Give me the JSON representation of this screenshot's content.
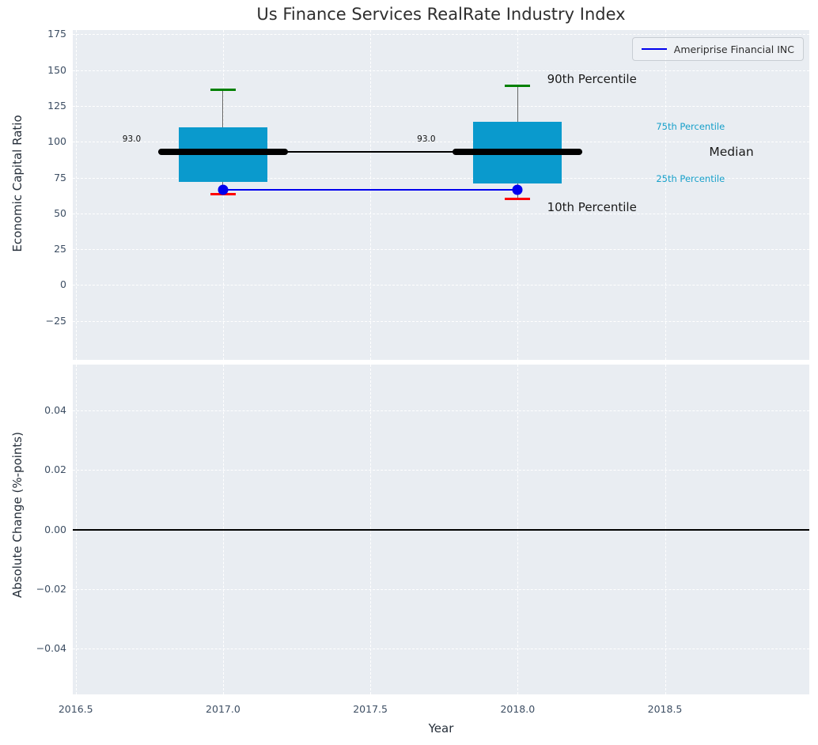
{
  "title": "Us Finance Services RealRate Industry Index",
  "legend": {
    "label": "Ameriprise Financial INC"
  },
  "colors": {
    "axes_bg": "#e9edf2",
    "grid": "#ffffff",
    "tick_label": "#3d4e63",
    "box_fill": "#0a9acd",
    "median_line": "#000000",
    "p90_cap": "#008000",
    "p10_cap": "#ff0000",
    "company_line": "#0000ee",
    "whisker": "#666666",
    "annotation_cyan": "#17a0ca",
    "annotation_black": "#1a1a1a"
  },
  "chart_data": [
    {
      "type": "box-percentile",
      "title": "Us Finance Services RealRate Industry Index",
      "ylabel": "Economic Capital Ratio",
      "ylim": [
        -52.3,
        178
      ],
      "yticks": [
        175,
        150,
        125,
        100,
        75,
        50,
        25,
        0,
        -25
      ],
      "ytick_labels": [
        "175",
        "150",
        "125",
        "100",
        "75",
        "50",
        "25",
        "0",
        "−25"
      ],
      "xlim": [
        2016.49,
        2018.99
      ],
      "xticks": [
        2016.5,
        2017.0,
        2017.5,
        2018.0,
        2018.5
      ],
      "grid": true,
      "legend_position": "upper right",
      "years": [
        2017,
        2018
      ],
      "p90": [
        136.5,
        139
      ],
      "p75": [
        110,
        114
      ],
      "median": [
        93.0,
        93.0
      ],
      "median_labels": [
        "93.0",
        "93.0"
      ],
      "p25": [
        72,
        71
      ],
      "p10": [
        63.5,
        60
      ],
      "company": {
        "name": "Ameriprise Financial INC",
        "values": [
          66.5,
          66.5
        ]
      },
      "box_width_years": 0.3,
      "median_span_years": 0.44,
      "cap_width_years": 0.085,
      "annotations": [
        {
          "text": "90th Percentile",
          "x": 2018.1,
          "y": 144,
          "color": "black",
          "size": 15
        },
        {
          "text": "75th Percentile",
          "x": 2018.47,
          "y": 110.5,
          "color": "cyan",
          "size": 11.5
        },
        {
          "text": "Median",
          "x": 2018.65,
          "y": 93,
          "color": "black",
          "size": 15.5
        },
        {
          "text": "25th Percentile",
          "x": 2018.47,
          "y": 74,
          "color": "cyan",
          "size": 11.5
        },
        {
          "text": "10th Percentile",
          "x": 2018.1,
          "y": 54.5,
          "color": "black",
          "size": 15
        }
      ]
    },
    {
      "type": "line",
      "ylabel": "Absolute Change (%-points)",
      "xlabel": "Year",
      "ylim": [
        -0.0553,
        0.0553
      ],
      "yticks": [
        0.04,
        0.02,
        0.0,
        -0.02,
        -0.04
      ],
      "ytick_labels": [
        "0.04",
        "0.02",
        "0.00",
        "−0.02",
        "−0.04"
      ],
      "xticks": [
        2016.5,
        2017.0,
        2017.5,
        2018.0,
        2018.5
      ],
      "xtick_labels": [
        "2016.5",
        "2017.0",
        "2017.5",
        "2018.0",
        "2018.5"
      ],
      "grid": true,
      "zero_line": 0.0
    }
  ]
}
